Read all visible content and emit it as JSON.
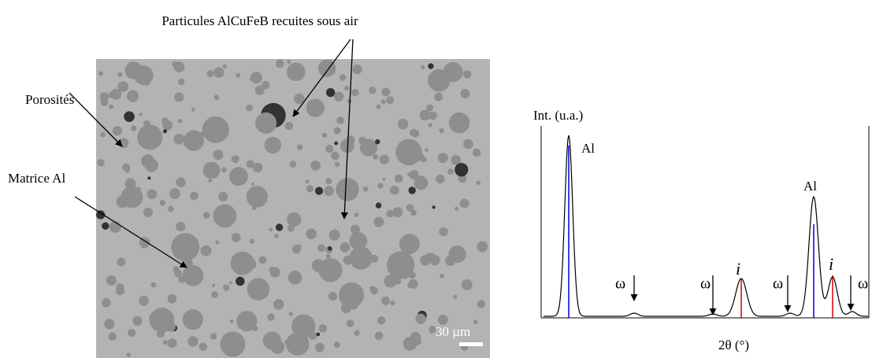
{
  "micrograph": {
    "particles_label": "Particules AlCuFeB recuites sous air",
    "porosity_label": "Porosités",
    "matrix_label": "Matrice Al",
    "scale_label": "30 µm"
  },
  "xrd": {
    "y_label": "Int. (u.a.)",
    "x_label": "2θ (°)",
    "peaks": [
      {
        "label": "Al"
      },
      {
        "label": "ω"
      },
      {
        "label": "ω"
      },
      {
        "label": "i"
      },
      {
        "label": "ω"
      },
      {
        "label": "Al"
      },
      {
        "label": "i"
      },
      {
        "label": "ω"
      }
    ]
  }
}
